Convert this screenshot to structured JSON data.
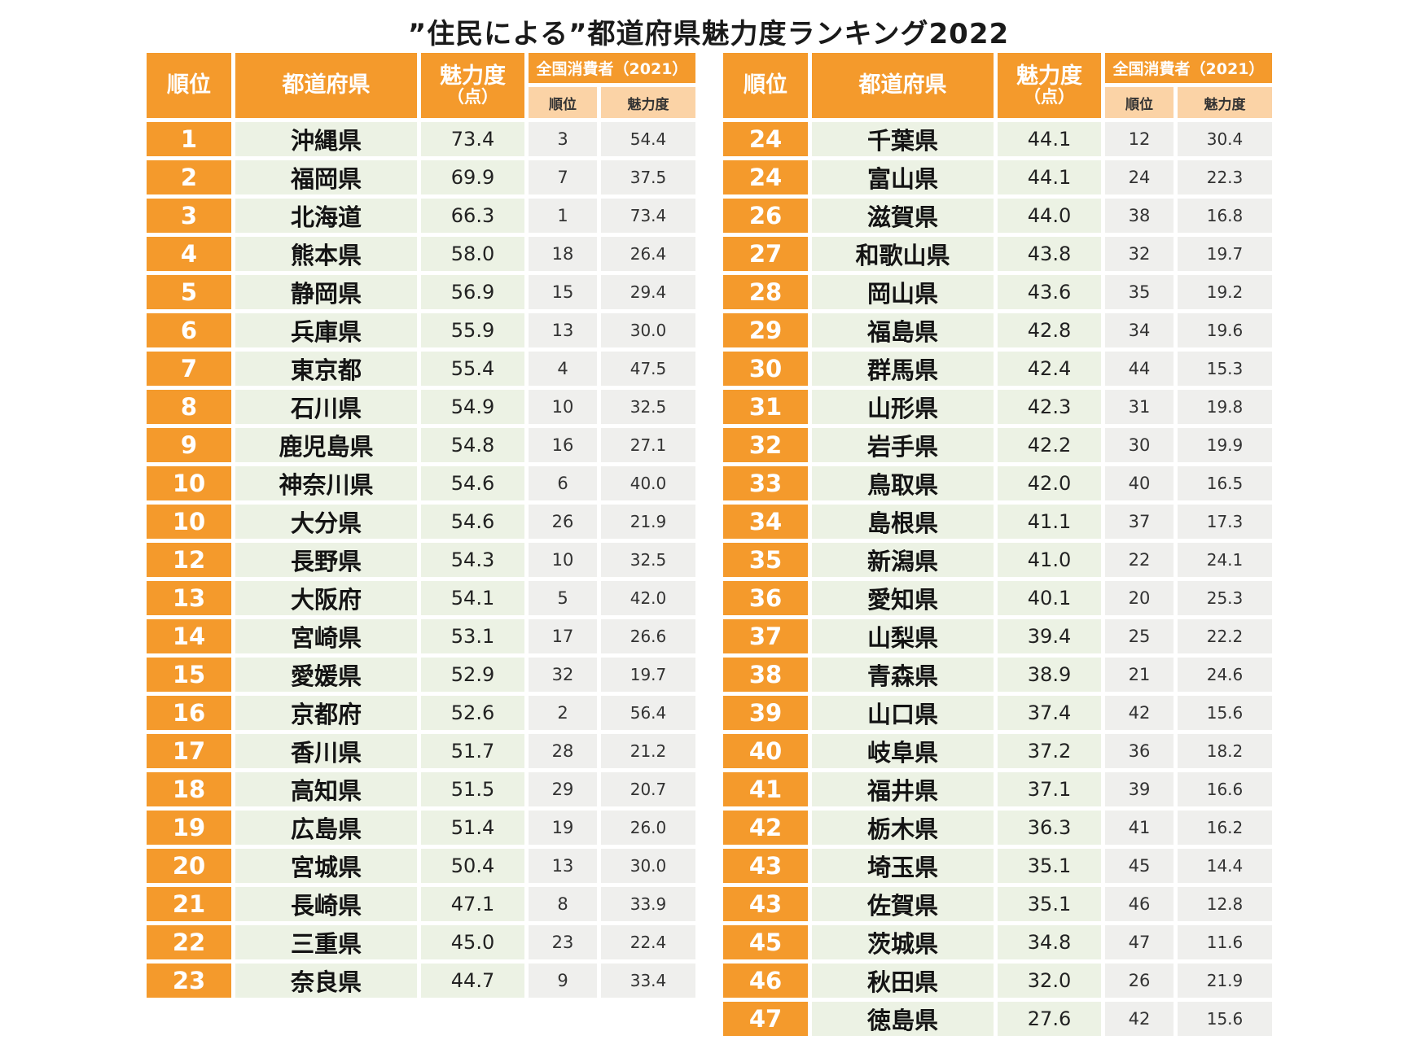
{
  "title": "”住民による”都道府県魅力度ランキング2022",
  "headers": {
    "rank": "順位",
    "prefecture": "都道府県",
    "score": "魅力度",
    "score_unit": "（点）",
    "national_group": "全国消費者（2021）",
    "national_rank": "順位",
    "national_score": "魅力度"
  },
  "colors": {
    "accent_orange": "#f49a2c",
    "light_orange": "#fbd3a6",
    "light_green": "#ecf2e4",
    "light_gray": "#efefed"
  },
  "left_rows": [
    {
      "rank": "1",
      "pref": "沖縄県",
      "score": "73.4",
      "nrank": "3",
      "nscore": "54.4"
    },
    {
      "rank": "2",
      "pref": "福岡県",
      "score": "69.9",
      "nrank": "7",
      "nscore": "37.5"
    },
    {
      "rank": "3",
      "pref": "北海道",
      "score": "66.3",
      "nrank": "1",
      "nscore": "73.4"
    },
    {
      "rank": "4",
      "pref": "熊本県",
      "score": "58.0",
      "nrank": "18",
      "nscore": "26.4"
    },
    {
      "rank": "5",
      "pref": "静岡県",
      "score": "56.9",
      "nrank": "15",
      "nscore": "29.4"
    },
    {
      "rank": "6",
      "pref": "兵庫県",
      "score": "55.9",
      "nrank": "13",
      "nscore": "30.0"
    },
    {
      "rank": "7",
      "pref": "東京都",
      "score": "55.4",
      "nrank": "4",
      "nscore": "47.5"
    },
    {
      "rank": "8",
      "pref": "石川県",
      "score": "54.9",
      "nrank": "10",
      "nscore": "32.5"
    },
    {
      "rank": "9",
      "pref": "鹿児島県",
      "score": "54.8",
      "nrank": "16",
      "nscore": "27.1"
    },
    {
      "rank": "10",
      "pref": "神奈川県",
      "score": "54.6",
      "nrank": "6",
      "nscore": "40.0"
    },
    {
      "rank": "10",
      "pref": "大分県",
      "score": "54.6",
      "nrank": "26",
      "nscore": "21.9"
    },
    {
      "rank": "12",
      "pref": "長野県",
      "score": "54.3",
      "nrank": "10",
      "nscore": "32.5"
    },
    {
      "rank": "13",
      "pref": "大阪府",
      "score": "54.1",
      "nrank": "5",
      "nscore": "42.0"
    },
    {
      "rank": "14",
      "pref": "宮崎県",
      "score": "53.1",
      "nrank": "17",
      "nscore": "26.6"
    },
    {
      "rank": "15",
      "pref": "愛媛県",
      "score": "52.9",
      "nrank": "32",
      "nscore": "19.7"
    },
    {
      "rank": "16",
      "pref": "京都府",
      "score": "52.6",
      "nrank": "2",
      "nscore": "56.4"
    },
    {
      "rank": "17",
      "pref": "香川県",
      "score": "51.7",
      "nrank": "28",
      "nscore": "21.2"
    },
    {
      "rank": "18",
      "pref": "高知県",
      "score": "51.5",
      "nrank": "29",
      "nscore": "20.7"
    },
    {
      "rank": "19",
      "pref": "広島県",
      "score": "51.4",
      "nrank": "19",
      "nscore": "26.0"
    },
    {
      "rank": "20",
      "pref": "宮城県",
      "score": "50.4",
      "nrank": "13",
      "nscore": "30.0"
    },
    {
      "rank": "21",
      "pref": "長崎県",
      "score": "47.1",
      "nrank": "8",
      "nscore": "33.9"
    },
    {
      "rank": "22",
      "pref": "三重県",
      "score": "45.0",
      "nrank": "23",
      "nscore": "22.4"
    },
    {
      "rank": "23",
      "pref": "奈良県",
      "score": "44.7",
      "nrank": "9",
      "nscore": "33.4"
    }
  ],
  "right_rows": [
    {
      "rank": "24",
      "pref": "千葉県",
      "score": "44.1",
      "nrank": "12",
      "nscore": "30.4"
    },
    {
      "rank": "24",
      "pref": "富山県",
      "score": "44.1",
      "nrank": "24",
      "nscore": "22.3"
    },
    {
      "rank": "26",
      "pref": "滋賀県",
      "score": "44.0",
      "nrank": "38",
      "nscore": "16.8"
    },
    {
      "rank": "27",
      "pref": "和歌山県",
      "score": "43.8",
      "nrank": "32",
      "nscore": "19.7"
    },
    {
      "rank": "28",
      "pref": "岡山県",
      "score": "43.6",
      "nrank": "35",
      "nscore": "19.2"
    },
    {
      "rank": "29",
      "pref": "福島県",
      "score": "42.8",
      "nrank": "34",
      "nscore": "19.6"
    },
    {
      "rank": "30",
      "pref": "群馬県",
      "score": "42.4",
      "nrank": "44",
      "nscore": "15.3"
    },
    {
      "rank": "31",
      "pref": "山形県",
      "score": "42.3",
      "nrank": "31",
      "nscore": "19.8"
    },
    {
      "rank": "32",
      "pref": "岩手県",
      "score": "42.2",
      "nrank": "30",
      "nscore": "19.9"
    },
    {
      "rank": "33",
      "pref": "鳥取県",
      "score": "42.0",
      "nrank": "40",
      "nscore": "16.5"
    },
    {
      "rank": "34",
      "pref": "島根県",
      "score": "41.1",
      "nrank": "37",
      "nscore": "17.3"
    },
    {
      "rank": "35",
      "pref": "新潟県",
      "score": "41.0",
      "nrank": "22",
      "nscore": "24.1"
    },
    {
      "rank": "36",
      "pref": "愛知県",
      "score": "40.1",
      "nrank": "20",
      "nscore": "25.3"
    },
    {
      "rank": "37",
      "pref": "山梨県",
      "score": "39.4",
      "nrank": "25",
      "nscore": "22.2"
    },
    {
      "rank": "38",
      "pref": "青森県",
      "score": "38.9",
      "nrank": "21",
      "nscore": "24.6"
    },
    {
      "rank": "39",
      "pref": "山口県",
      "score": "37.4",
      "nrank": "42",
      "nscore": "15.6"
    },
    {
      "rank": "40",
      "pref": "岐阜県",
      "score": "37.2",
      "nrank": "36",
      "nscore": "18.2"
    },
    {
      "rank": "41",
      "pref": "福井県",
      "score": "37.1",
      "nrank": "39",
      "nscore": "16.6"
    },
    {
      "rank": "42",
      "pref": "栃木県",
      "score": "36.3",
      "nrank": "41",
      "nscore": "16.2"
    },
    {
      "rank": "43",
      "pref": "埼玉県",
      "score": "35.1",
      "nrank": "45",
      "nscore": "14.4"
    },
    {
      "rank": "43",
      "pref": "佐賀県",
      "score": "35.1",
      "nrank": "46",
      "nscore": "12.8"
    },
    {
      "rank": "45",
      "pref": "茨城県",
      "score": "34.8",
      "nrank": "47",
      "nscore": "11.6"
    },
    {
      "rank": "46",
      "pref": "秋田県",
      "score": "32.0",
      "nrank": "26",
      "nscore": "21.9"
    },
    {
      "rank": "47",
      "pref": "徳島県",
      "score": "27.6",
      "nrank": "42",
      "nscore": "15.6"
    }
  ]
}
